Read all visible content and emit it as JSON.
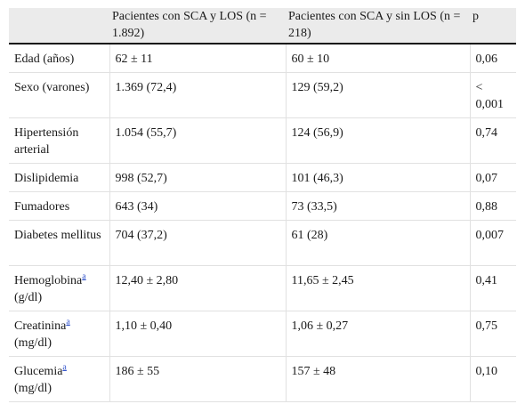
{
  "headers": [
    "",
    "Pacientes con SCA y LOS (n = 1.892)",
    "Pacientes con SCA y sin LOS (n = 218)",
    "p"
  ],
  "rows": [
    {
      "label": "Edad (años)",
      "footnote": "",
      "label_suffix": "",
      "los": "62 ± 11",
      "sin_los": "60 ± 10",
      "p": "0,06"
    },
    {
      "label": "Sexo (varones)",
      "footnote": "",
      "label_suffix": "",
      "los": "1.369 (72,4)",
      "sin_los": "129 (59,2)",
      "p": "< 0,001"
    },
    {
      "label": "Hipertensión arterial",
      "footnote": "",
      "label_suffix": "",
      "los": "1.054 (55,7)",
      "sin_los": "124 (56,9)",
      "p": "0,74"
    },
    {
      "label": "Dislipidemia",
      "footnote": "",
      "label_suffix": "",
      "los": "998 (52,7)",
      "sin_los": "101 (46,3)",
      "p": "0,07"
    },
    {
      "label": "Fumadores",
      "footnote": "",
      "label_suffix": "",
      "los": "643 (34)",
      "sin_los": "73 (33,5)",
      "p": "0,88"
    },
    {
      "label": "Diabetes mellitus",
      "footnote": "",
      "label_suffix": "",
      "los": "704 (37,2)",
      "sin_los": "61 (28)",
      "p": "0,007"
    },
    {
      "label": "Hemoglobina",
      "footnote": "a",
      "label_suffix": "(g/dl)",
      "los": "12,40 ± 2,80",
      "sin_los": "11,65 ± 2,45",
      "p": "0,41"
    },
    {
      "label": "Creatinina",
      "footnote": "a",
      "label_suffix": "(mg/dl)",
      "los": "1,10 ± 0,40",
      "sin_los": "1,06 ± 0,27",
      "p": "0,75"
    },
    {
      "label": "Glucemia",
      "footnote": "a",
      "label_suffix": "(mg/dl)",
      "los": "186 ± 55",
      "sin_los": "157 ± 48",
      "p": "0,10"
    }
  ]
}
